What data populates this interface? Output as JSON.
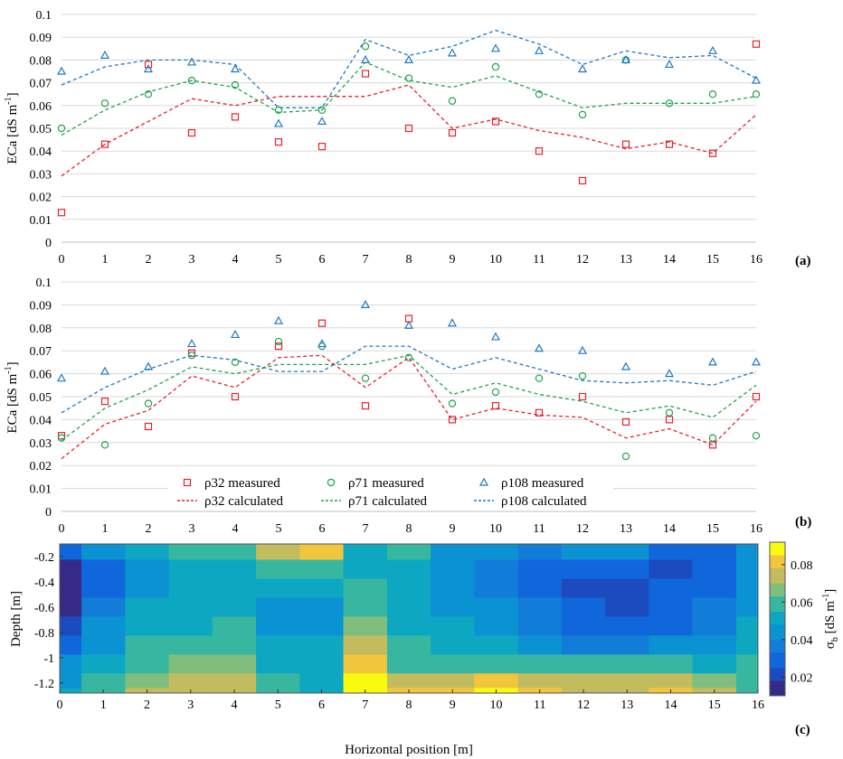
{
  "colors": {
    "r32": "#e8212b",
    "r71": "#1fa34a",
    "r108": "#1f78c1",
    "grid": "#d9d9d9"
  },
  "chart_data": [
    {
      "panel_label": "(a)",
      "type": "line",
      "ylabel": "ECa [dS m",
      "ylabel_sup": "-1",
      "ylabel_end": "]",
      "ylim": [
        0,
        0.1
      ],
      "yticks": [
        "0",
        "0.01",
        "0.02",
        "0.03",
        "0.04",
        "0.05",
        "0.06",
        "0.07",
        "0.08",
        "0.09",
        "0.1"
      ],
      "xlim": [
        0,
        16
      ],
      "xticks": [
        "0",
        "1",
        "2",
        "3",
        "4",
        "5",
        "6",
        "7",
        "8",
        "9",
        "10",
        "11",
        "12",
        "13",
        "14",
        "15",
        "16"
      ],
      "grid": "horizontal",
      "series": [
        {
          "name": "ρ32 measured",
          "key": "r32",
          "style": "square",
          "x": [
            0,
            1,
            2,
            3,
            4,
            5,
            6,
            7,
            8,
            9,
            10,
            11,
            12,
            13,
            14,
            15,
            16
          ],
          "values": [
            0.013,
            0.043,
            0.078,
            0.048,
            0.055,
            0.044,
            0.042,
            0.074,
            0.05,
            0.048,
            0.053,
            0.04,
            0.027,
            0.043,
            0.043,
            0.039,
            0.087
          ]
        },
        {
          "name": "ρ71 measured",
          "key": "r71",
          "style": "circle",
          "x": [
            0,
            1,
            2,
            3,
            4,
            5,
            6,
            7,
            8,
            9,
            10,
            11,
            12,
            13,
            14,
            15,
            16
          ],
          "values": [
            0.05,
            0.061,
            0.065,
            0.071,
            0.069,
            0.058,
            0.058,
            0.086,
            0.072,
            0.062,
            0.077,
            0.065,
            0.056,
            0.08,
            0.061,
            0.065,
            0.065
          ]
        },
        {
          "name": "ρ108 measured",
          "key": "r108",
          "style": "triangle",
          "x": [
            0,
            1,
            2,
            3,
            4,
            5,
            6,
            7,
            8,
            9,
            10,
            11,
            12,
            13,
            14,
            15,
            16
          ],
          "values": [
            0.075,
            0.082,
            0.076,
            0.079,
            0.076,
            0.052,
            0.053,
            0.08,
            0.08,
            0.083,
            0.085,
            0.084,
            0.076,
            0.08,
            0.078,
            0.084,
            0.071
          ]
        },
        {
          "name": "ρ32 calculated",
          "key": "r32",
          "style": "dashed",
          "x": [
            0,
            1,
            2,
            3,
            4,
            5,
            6,
            7,
            8,
            9,
            10,
            11,
            12,
            13,
            14,
            15,
            16
          ],
          "values": [
            0.029,
            0.043,
            0.053,
            0.063,
            0.06,
            0.064,
            0.064,
            0.064,
            0.069,
            0.05,
            0.054,
            0.049,
            0.046,
            0.041,
            0.044,
            0.039,
            0.056
          ]
        },
        {
          "name": "ρ71 calculated",
          "key": "r71",
          "style": "dashed",
          "x": [
            0,
            1,
            2,
            3,
            4,
            5,
            6,
            7,
            8,
            9,
            10,
            11,
            12,
            13,
            14,
            15,
            16
          ],
          "values": [
            0.047,
            0.058,
            0.066,
            0.071,
            0.068,
            0.057,
            0.058,
            0.079,
            0.071,
            0.068,
            0.073,
            0.066,
            0.059,
            0.061,
            0.061,
            0.061,
            0.064
          ]
        },
        {
          "name": "ρ108 calculated",
          "key": "r108",
          "style": "dashed",
          "x": [
            0,
            1,
            2,
            3,
            4,
            5,
            6,
            7,
            8,
            9,
            10,
            11,
            12,
            13,
            14,
            15,
            16
          ],
          "values": [
            0.069,
            0.077,
            0.08,
            0.08,
            0.078,
            0.059,
            0.059,
            0.089,
            0.082,
            0.086,
            0.093,
            0.087,
            0.078,
            0.084,
            0.081,
            0.082,
            0.072
          ]
        }
      ]
    },
    {
      "panel_label": "(b)",
      "type": "line",
      "ylabel": "ECa [dS m",
      "ylabel_sup": "-1",
      "ylabel_end": "]",
      "ylim": [
        0,
        0.1
      ],
      "yticks": [
        "0",
        "0.01",
        "0.02",
        "0.03",
        "0.04",
        "0.05",
        "0.06",
        "0.07",
        "0.08",
        "0.09",
        "0.1"
      ],
      "xlim": [
        0,
        16
      ],
      "xticks": [
        "0",
        "1",
        "2",
        "3",
        "4",
        "5",
        "6",
        "7",
        "8",
        "9",
        "10",
        "11",
        "12",
        "13",
        "14",
        "15",
        "16"
      ],
      "grid": "horizontal",
      "legend": {
        "placement": "bottom-center",
        "entries": [
          {
            "label": "ρ32 measured",
            "key": "r32",
            "style": "square"
          },
          {
            "label": "ρ71 measured",
            "key": "r71",
            "style": "circle"
          },
          {
            "label": "ρ108 measured",
            "key": "r108",
            "style": "triangle"
          },
          {
            "label": "ρ32 calculated",
            "key": "r32",
            "style": "dashed"
          },
          {
            "label": "ρ71 calculated",
            "key": "r71",
            "style": "dashed"
          },
          {
            "label": "ρ108 calculated",
            "key": "r108",
            "style": "dashed"
          }
        ]
      },
      "series": [
        {
          "name": "ρ32 measured",
          "key": "r32",
          "style": "square",
          "x": [
            0,
            1,
            2,
            3,
            4,
            5,
            6,
            7,
            8,
            9,
            10,
            11,
            12,
            13,
            14,
            15,
            16
          ],
          "values": [
            0.033,
            0.048,
            0.037,
            0.069,
            0.05,
            0.072,
            0.082,
            0.046,
            0.084,
            0.04,
            0.046,
            0.043,
            0.05,
            0.039,
            0.04,
            0.029,
            0.05
          ]
        },
        {
          "name": "ρ71 measured",
          "key": "r71",
          "style": "circle",
          "x": [
            0,
            1,
            2,
            3,
            4,
            5,
            6,
            7,
            8,
            9,
            10,
            11,
            12,
            13,
            14,
            15,
            16
          ],
          "values": [
            0.032,
            0.029,
            0.047,
            0.068,
            0.065,
            0.074,
            0.072,
            0.058,
            0.067,
            0.047,
            0.052,
            0.058,
            0.059,
            0.024,
            0.043,
            0.032,
            0.033
          ]
        },
        {
          "name": "ρ108 measured",
          "key": "r108",
          "style": "triangle",
          "x": [
            0,
            1,
            2,
            3,
            4,
            5,
            6,
            7,
            8,
            9,
            10,
            11,
            12,
            13,
            14,
            15,
            16
          ],
          "values": [
            0.058,
            0.061,
            0.063,
            0.073,
            0.077,
            0.083,
            0.073,
            0.09,
            0.081,
            0.082,
            0.076,
            0.071,
            0.07,
            0.063,
            0.06,
            0.065,
            0.065
          ]
        },
        {
          "name": "ρ32 calculated",
          "key": "r32",
          "style": "dashed",
          "x": [
            0,
            1,
            2,
            3,
            4,
            5,
            6,
            7,
            8,
            9,
            10,
            11,
            12,
            13,
            14,
            15,
            16
          ],
          "values": [
            0.023,
            0.038,
            0.044,
            0.059,
            0.054,
            0.067,
            0.068,
            0.054,
            0.067,
            0.04,
            0.045,
            0.042,
            0.041,
            0.032,
            0.036,
            0.029,
            0.048
          ]
        },
        {
          "name": "ρ71 calculated",
          "key": "r71",
          "style": "dashed",
          "x": [
            0,
            1,
            2,
            3,
            4,
            5,
            6,
            7,
            8,
            9,
            10,
            11,
            12,
            13,
            14,
            15,
            16
          ],
          "values": [
            0.031,
            0.045,
            0.053,
            0.063,
            0.06,
            0.064,
            0.064,
            0.064,
            0.068,
            0.051,
            0.056,
            0.051,
            0.048,
            0.043,
            0.046,
            0.041,
            0.055
          ]
        },
        {
          "name": "ρ108 calculated",
          "key": "r108",
          "style": "dashed",
          "x": [
            0,
            1,
            2,
            3,
            4,
            5,
            6,
            7,
            8,
            9,
            10,
            11,
            12,
            13,
            14,
            15,
            16
          ],
          "values": [
            0.043,
            0.054,
            0.062,
            0.068,
            0.066,
            0.061,
            0.061,
            0.072,
            0.072,
            0.062,
            0.067,
            0.062,
            0.057,
            0.056,
            0.057,
            0.055,
            0.061
          ]
        }
      ]
    },
    {
      "panel_label": "(c)",
      "type": "heatmap",
      "xlabel": "Horizontal position [m]",
      "ylabel": "Depth [m]",
      "xlim": [
        0,
        16
      ],
      "ylim": [
        -1.28,
        -0.1
      ],
      "xticks": [
        "0",
        "1",
        "2",
        "3",
        "4",
        "5",
        "6",
        "7",
        "8",
        "9",
        "10",
        "11",
        "12",
        "13",
        "14",
        "15",
        "16"
      ],
      "yticks": [
        "-0.2",
        "-0.4",
        "-0.6",
        "-0.8",
        "-1",
        "-1.2"
      ],
      "ytick_values": [
        -0.2,
        -0.4,
        -0.6,
        -0.8,
        -1.0,
        -1.2
      ],
      "colorbar": {
        "label": "σ",
        "label_sub": "b",
        "label_rest": " [dS m",
        "label_sup": "-1",
        "label_end": "]",
        "min": 0.01,
        "max": 0.092,
        "ticks": [
          "0.02",
          "0.04",
          "0.06",
          "0.08"
        ],
        "tick_values": [
          0.02,
          0.04,
          0.06,
          0.08
        ]
      },
      "x": [
        0,
        1,
        2,
        3,
        4,
        5,
        6,
        7,
        8,
        9,
        10,
        11,
        12,
        13,
        14,
        15,
        16
      ],
      "depths": [
        -0.15,
        -0.3,
        -0.45,
        -0.6,
        -0.75,
        -0.9,
        -1.05,
        -1.2,
        -1.28
      ],
      "values": [
        [
          0.03,
          0.04,
          0.048,
          0.055,
          0.058,
          0.075,
          0.078,
          0.05,
          0.062,
          0.04,
          0.04,
          0.038,
          0.042,
          0.04,
          0.032,
          0.03,
          0.04
        ],
        [
          0.015,
          0.03,
          0.045,
          0.05,
          0.052,
          0.055,
          0.055,
          0.05,
          0.052,
          0.04,
          0.035,
          0.03,
          0.03,
          0.03,
          0.022,
          0.028,
          0.04
        ],
        [
          0.012,
          0.03,
          0.045,
          0.048,
          0.05,
          0.048,
          0.048,
          0.055,
          0.05,
          0.042,
          0.035,
          0.03,
          0.022,
          0.022,
          0.025,
          0.032,
          0.042
        ],
        [
          0.012,
          0.035,
          0.048,
          0.048,
          0.05,
          0.045,
          0.045,
          0.062,
          0.048,
          0.045,
          0.04,
          0.035,
          0.025,
          0.022,
          0.028,
          0.035,
          0.045
        ],
        [
          0.02,
          0.04,
          0.05,
          0.052,
          0.055,
          0.045,
          0.045,
          0.068,
          0.05,
          0.048,
          0.042,
          0.038,
          0.03,
          0.028,
          0.032,
          0.038,
          0.048
        ],
        [
          0.03,
          0.045,
          0.055,
          0.06,
          0.062,
          0.048,
          0.048,
          0.072,
          0.055,
          0.05,
          0.048,
          0.042,
          0.038,
          0.038,
          0.04,
          0.042,
          0.05
        ],
        [
          0.04,
          0.052,
          0.06,
          0.065,
          0.065,
          0.05,
          0.05,
          0.078,
          0.062,
          0.058,
          0.058,
          0.056,
          0.055,
          0.055,
          0.055,
          0.052,
          0.055
        ],
        [
          0.045,
          0.058,
          0.066,
          0.072,
          0.07,
          0.055,
          0.05,
          0.085,
          0.072,
          0.075,
          0.078,
          0.075,
          0.07,
          0.07,
          0.072,
          0.065,
          0.06
        ],
        [
          0.05,
          0.062,
          0.07,
          0.076,
          0.074,
          0.06,
          0.052,
          0.088,
          0.08,
          0.082,
          0.086,
          0.08,
          0.076,
          0.076,
          0.078,
          0.07,
          0.062
        ]
      ]
    }
  ]
}
